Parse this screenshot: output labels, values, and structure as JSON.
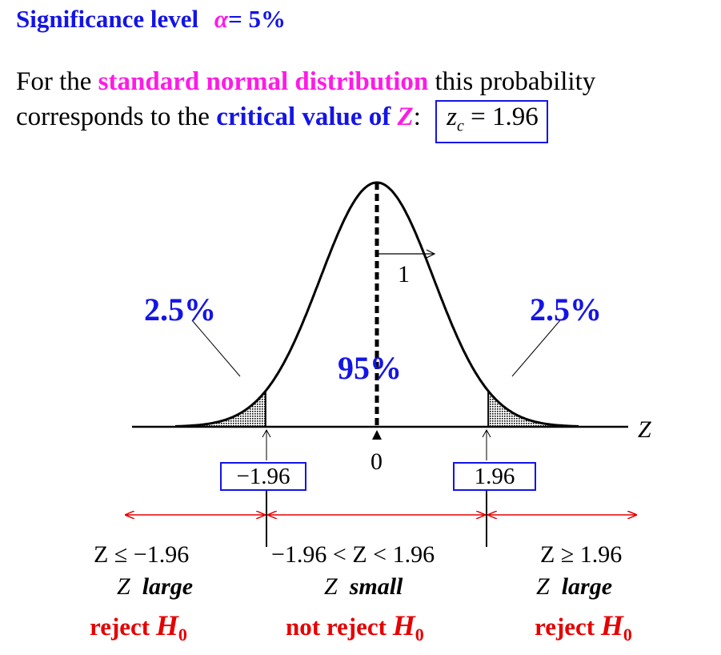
{
  "title": {
    "prefix": "Significance level",
    "alpha_symbol": "α",
    "value": "= 5%"
  },
  "text": {
    "line1_a": "For the ",
    "line1_highlight": "standard normal distribution",
    "line1_b": " this probability",
    "line2_a": "corresponds to the ",
    "line2_highlight": "critical value of ",
    "line2_var": "Z",
    "line2_colon": ":",
    "zc_var": "z",
    "zc_sub": "c",
    "zc_eq": " = 1.96"
  },
  "diagram": {
    "left_tail_pct": "2.5%",
    "right_tail_pct": "2.5%",
    "center_pct": "95%",
    "sd_label": "1",
    "axis_label": "Z",
    "zero_label": "0",
    "left_critical": "−1.96",
    "right_critical": "1.96"
  },
  "regions": {
    "left": {
      "condition": "Z ≤ −1.96",
      "z": "Z",
      "size": "large",
      "decision": "reject ",
      "h": "H",
      "h_sub": "0"
    },
    "middle": {
      "condition": "−1.96 < Z < 1.96",
      "z": "Z",
      "size": "small",
      "decision": "not reject ",
      "h": "H",
      "h_sub": "0"
    },
    "right": {
      "condition": "Z ≥ 1.96",
      "z": "Z",
      "size": "large",
      "decision": "reject ",
      "h": "H",
      "h_sub": "0"
    }
  },
  "colors": {
    "blue": "#1414e6",
    "magenta": "#ff1ae6",
    "red": "#e60000"
  }
}
